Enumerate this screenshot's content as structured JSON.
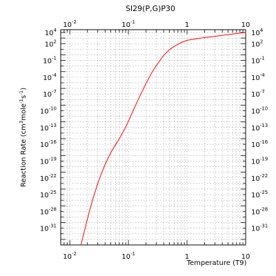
{
  "chart_data": {
    "type": "line",
    "title": "SI29(P,G)P30",
    "xlabel": "Temperature (T9)",
    "ylabel_parts": [
      "Reaction Rate (cm",
      "3",
      "mole",
      "-1",
      "s",
      "-1",
      ")"
    ],
    "x_scale": "log",
    "y_scale": "log",
    "xlim": [
      0.007,
      10
    ],
    "ylim_log10": [
      -34,
      4.5
    ],
    "grid": true,
    "x_ticks": [
      {
        "base": "10",
        "exp": "-2",
        "value": 0.01
      },
      {
        "base": "10",
        "exp": "-1",
        "value": 0.1
      },
      {
        "base": "1",
        "exp": "",
        "value": 1
      },
      {
        "base": "10",
        "exp": "",
        "value": 10
      }
    ],
    "y_ticks": [
      {
        "base": "10",
        "exp": "4",
        "log": 4
      },
      {
        "base": "10",
        "exp": "2",
        "log": 2
      },
      {
        "base": "10",
        "exp": "-1",
        "log": -1
      },
      {
        "base": "10",
        "exp": "-4",
        "log": -4
      },
      {
        "base": "10",
        "exp": "-7",
        "log": -7
      },
      {
        "base": "10",
        "exp": "-10",
        "log": -10
      },
      {
        "base": "10",
        "exp": "-13",
        "log": -13
      },
      {
        "base": "10",
        "exp": "-16",
        "log": -16
      },
      {
        "base": "10",
        "exp": "-19",
        "log": -19
      },
      {
        "base": "10",
        "exp": "-22",
        "log": -22
      },
      {
        "base": "10",
        "exp": "-25",
        "log": -25
      },
      {
        "base": "10",
        "exp": "-28",
        "log": -28
      },
      {
        "base": "10",
        "exp": "-31",
        "log": -31
      }
    ],
    "series": [
      {
        "color": "#ff0000",
        "x": [
          0.0155,
          0.018,
          0.02,
          0.025,
          0.03,
          0.035,
          0.04,
          0.05,
          0.06,
          0.07,
          0.08,
          0.09,
          0.1,
          0.12,
          0.15,
          0.2,
          0.25,
          0.3,
          0.4,
          0.5,
          0.6,
          0.8,
          1.0,
          1.5,
          2,
          3,
          4,
          5,
          7,
          10
        ],
        "log10_y": [
          -34.0,
          -31.3,
          -29.3,
          -25.6,
          -23.0,
          -21.1,
          -19.6,
          -17.5,
          -16.1,
          -15.0,
          -13.9,
          -12.9,
          -11.9,
          -10.0,
          -7.8,
          -5.1,
          -3.2,
          -1.9,
          -0.1,
          0.9,
          1.5,
          2.2,
          2.6,
          2.9,
          3.1,
          3.3,
          3.5,
          3.6,
          3.8,
          4.0
        ]
      }
    ]
  }
}
